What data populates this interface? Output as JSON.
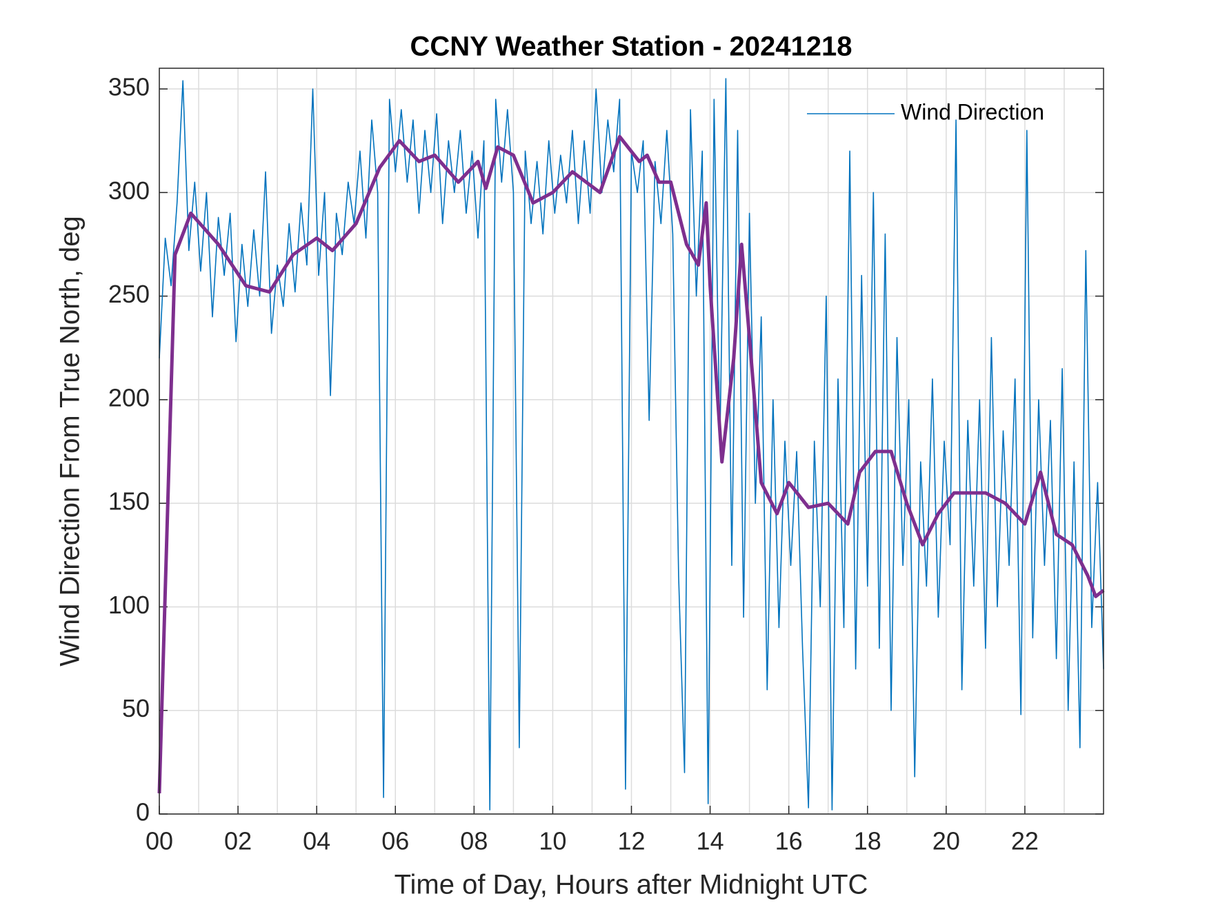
{
  "chart_data": {
    "type": "line",
    "title": "CCNY Weather Station - 20241218",
    "x_label": "Time of Day, Hours after Midnight UTC",
    "y_label": "Wind Direction From True North, deg",
    "xlim": [
      0,
      24
    ],
    "ylim": [
      0,
      360
    ],
    "xticks": [
      {
        "value": 0,
        "label": "00"
      },
      {
        "value": 2,
        "label": "02"
      },
      {
        "value": 4,
        "label": "04"
      },
      {
        "value": 6,
        "label": "06"
      },
      {
        "value": 8,
        "label": "08"
      },
      10,
      12,
      14,
      16,
      18,
      20,
      22
    ],
    "xgrid_minor": [
      1,
      3,
      5,
      7,
      9,
      11,
      13,
      15,
      17,
      19,
      21,
      23
    ],
    "yticks": [
      0,
      50,
      100,
      150,
      200,
      250,
      300,
      350
    ],
    "grid": true,
    "legend": "northeast",
    "series": [
      {
        "name": "Wind Direction",
        "color": "#0072BD",
        "width": 1.6,
        "x": [
          0,
          0.15,
          0.3,
          0.45,
          0.6,
          0.75,
          0.9,
          1.05,
          1.2,
          1.35,
          1.5,
          1.65,
          1.8,
          1.95,
          2.1,
          2.25,
          2.4,
          2.55,
          2.7,
          2.85,
          3,
          3.15,
          3.3,
          3.45,
          3.6,
          3.75,
          3.9,
          4.05,
          4.2,
          4.35,
          4.5,
          4.65,
          4.8,
          4.95,
          5.1,
          5.25,
          5.4,
          5.55,
          5.7,
          5.85,
          6,
          6.15,
          6.3,
          6.45,
          6.6,
          6.75,
          6.9,
          7.05,
          7.2,
          7.35,
          7.5,
          7.65,
          7.8,
          7.95,
          8.1,
          8.25,
          8.4,
          8.55,
          8.7,
          8.85,
          9,
          9.15,
          9.3,
          9.45,
          9.6,
          9.75,
          9.9,
          10.05,
          10.2,
          10.35,
          10.5,
          10.65,
          10.8,
          10.95,
          11.1,
          11.25,
          11.4,
          11.55,
          11.7,
          11.85,
          12,
          12.15,
          12.3,
          12.45,
          12.6,
          12.75,
          12.9,
          13.05,
          13.2,
          13.35,
          13.5,
          13.65,
          13.8,
          13.95,
          14.1,
          14.25,
          14.4,
          14.55,
          14.7,
          14.85,
          15,
          15.15,
          15.3,
          15.45,
          15.6,
          15.75,
          15.9,
          16.05,
          16.2,
          16.35,
          16.5,
          16.65,
          16.8,
          16.95,
          17.1,
          17.25,
          17.4,
          17.55,
          17.7,
          17.85,
          18,
          18.15,
          18.3,
          18.45,
          18.6,
          18.75,
          18.9,
          19.05,
          19.2,
          19.35,
          19.5,
          19.65,
          19.8,
          19.95,
          20.1,
          20.25,
          20.4,
          20.55,
          20.7,
          20.85,
          21,
          21.15,
          21.3,
          21.45,
          21.6,
          21.75,
          21.9,
          22.05,
          22.2,
          22.35,
          22.5,
          22.65,
          22.8,
          22.95,
          23.1,
          23.25,
          23.4,
          23.55,
          23.7,
          23.85,
          24
        ],
        "values": [
          220,
          278,
          255,
          295,
          354,
          272,
          305,
          262,
          300,
          240,
          288,
          260,
          290,
          228,
          275,
          245,
          282,
          250,
          310,
          232,
          265,
          245,
          285,
          252,
          295,
          265,
          350,
          260,
          300,
          202,
          290,
          270,
          305,
          285,
          320,
          278,
          335,
          300,
          8,
          345,
          310,
          340,
          305,
          335,
          290,
          330,
          300,
          338,
          285,
          325,
          300,
          330,
          290,
          320,
          278,
          325,
          2,
          345,
          305,
          340,
          300,
          32,
          320,
          285,
          315,
          280,
          325,
          290,
          318,
          295,
          330,
          285,
          325,
          290,
          350,
          300,
          335,
          310,
          345,
          12,
          320,
          300,
          325,
          190,
          315,
          285,
          330,
          280,
          115,
          20,
          340,
          250,
          320,
          5,
          345,
          180,
          355,
          120,
          330,
          95,
          290,
          150,
          240,
          60,
          200,
          90,
          180,
          120,
          175,
          80,
          3,
          180,
          100,
          250,
          2,
          210,
          90,
          320,
          70,
          260,
          110,
          300,
          80,
          280,
          50,
          230,
          120,
          200,
          18,
          170,
          110,
          210,
          95,
          180,
          130,
          335,
          60,
          190,
          110,
          200,
          80,
          230,
          100,
          185,
          120,
          210,
          48,
          330,
          85,
          200,
          120,
          190,
          75,
          215,
          50,
          170,
          32,
          272,
          90,
          160,
          70
        ]
      },
      {
        "color": "#7E2F8E",
        "width": 5,
        "x": [
          0,
          0.4,
          0.8,
          1.5,
          2.2,
          2.8,
          3.4,
          4,
          4.4,
          5,
          5.6,
          6.1,
          6.6,
          7,
          7.6,
          8.1,
          8.3,
          8.6,
          9,
          9.5,
          10,
          10.5,
          11.2,
          11.7,
          12.2,
          12.4,
          12.7,
          13,
          13.4,
          13.7,
          13.9,
          14,
          14.3,
          14.6,
          14.8,
          15,
          15.3,
          15.7,
          16,
          16.5,
          17,
          17.5,
          17.8,
          18.2,
          18.6,
          19,
          19.4,
          19.8,
          20.2,
          20.7,
          21,
          21.5,
          22,
          22.4,
          22.8,
          23.2,
          23.6,
          23.8,
          24
        ],
        "values": [
          10,
          270,
          290,
          275,
          255,
          252,
          270,
          278,
          272,
          285,
          312,
          325,
          315,
          318,
          305,
          315,
          302,
          322,
          318,
          295,
          300,
          310,
          300,
          327,
          315,
          318,
          305,
          305,
          275,
          265,
          295,
          255,
          170,
          220,
          275,
          230,
          160,
          145,
          160,
          148,
          150,
          140,
          165,
          175,
          175,
          150,
          130,
          145,
          155,
          155,
          155,
          150,
          140,
          165,
          135,
          130,
          115,
          105,
          108
        ]
      }
    ]
  }
}
